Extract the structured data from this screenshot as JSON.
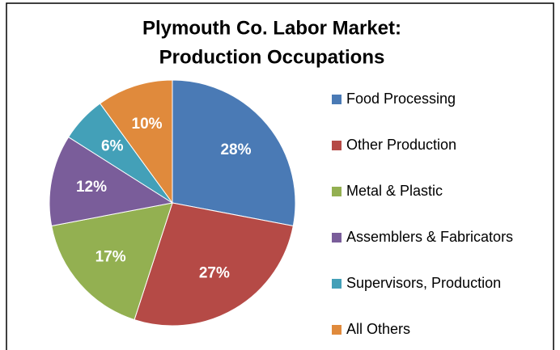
{
  "chart_data": {
    "type": "pie",
    "title": [
      "Plymouth Co. Labor Market:",
      "Production Occupations"
    ],
    "categories": [
      "Food Processing",
      "Other Production",
      "Metal & Plastic",
      "Assemblers & Fabricators",
      "Supervisors, Production",
      "All Others"
    ],
    "values": [
      28,
      27,
      17,
      12,
      6,
      10
    ],
    "value_labels": [
      "28%",
      "27%",
      "17%",
      "12%",
      "6%",
      "10%"
    ],
    "colors": [
      "#4a7ab5",
      "#b54a46",
      "#93b051",
      "#7a5d9a",
      "#43a0b8",
      "#e08a3c"
    ],
    "legend": "right"
  }
}
